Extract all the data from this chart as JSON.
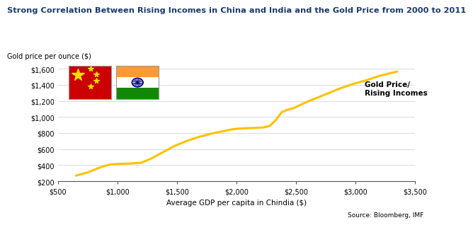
{
  "title": "Strong Correlation Between Rising Incomes in China and India and the Gold Price from 2000 to 2011",
  "ylabel": "Gold price per ounce ($)",
  "xlabel": "Average GDP per capita in Chindia ($)",
  "source": "Source: Bloomberg, IMF",
  "annotation": "Gold Price/\nRising Incomes",
  "line_color": "#FFC200",
  "line_width": 2.2,
  "xlim": [
    500,
    3500
  ],
  "ylim": [
    200,
    1650
  ],
  "xticks": [
    500,
    1000,
    1500,
    2000,
    2500,
    3000,
    3500
  ],
  "yticks": [
    200,
    400,
    600,
    800,
    1000,
    1200,
    1400,
    1600
  ],
  "x": [
    650,
    700,
    750,
    800,
    850,
    900,
    950,
    1000,
    1050,
    1100,
    1150,
    1200,
    1280,
    1380,
    1480,
    1580,
    1680,
    1780,
    1880,
    1960,
    2020,
    2080,
    2130,
    2180,
    2230,
    2280,
    2330,
    2380,
    2430,
    2480,
    2580,
    2680,
    2780,
    2880,
    2980,
    3100,
    3200,
    3350
  ],
  "y": [
    270,
    290,
    310,
    340,
    370,
    395,
    410,
    415,
    418,
    420,
    425,
    430,
    480,
    560,
    640,
    700,
    750,
    790,
    820,
    845,
    855,
    860,
    862,
    865,
    870,
    890,
    960,
    1060,
    1090,
    1110,
    1180,
    1240,
    1300,
    1360,
    1410,
    1460,
    1510,
    1565
  ]
}
